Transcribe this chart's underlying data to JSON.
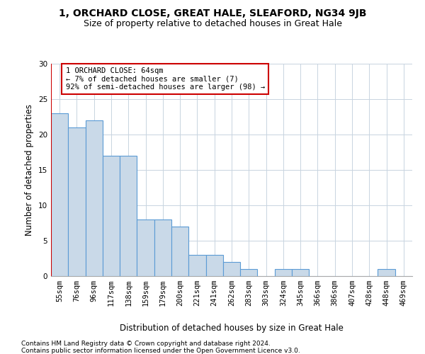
{
  "title1": "1, ORCHARD CLOSE, GREAT HALE, SLEAFORD, NG34 9JB",
  "title2": "Size of property relative to detached houses in Great Hale",
  "xlabel": "Distribution of detached houses by size in Great Hale",
  "ylabel": "Number of detached properties",
  "categories": [
    "55sqm",
    "76sqm",
    "96sqm",
    "117sqm",
    "138sqm",
    "159sqm",
    "179sqm",
    "200sqm",
    "221sqm",
    "241sqm",
    "262sqm",
    "283sqm",
    "303sqm",
    "324sqm",
    "345sqm",
    "366sqm",
    "386sqm",
    "407sqm",
    "428sqm",
    "448sqm",
    "469sqm"
  ],
  "values": [
    23,
    21,
    22,
    17,
    17,
    8,
    8,
    7,
    3,
    3,
    2,
    1,
    0,
    1,
    1,
    0,
    0,
    0,
    0,
    1,
    0
  ],
  "bar_color": "#c9d9e8",
  "bar_edge_color": "#5b9bd5",
  "highlight_color": "#cc0000",
  "annotation_text": "1 ORCHARD CLOSE: 64sqm\n← 7% of detached houses are smaller (7)\n92% of semi-detached houses are larger (98) →",
  "ylim": [
    0,
    30
  ],
  "yticks": [
    0,
    5,
    10,
    15,
    20,
    25,
    30
  ],
  "footnote1": "Contains HM Land Registry data © Crown copyright and database right 2024.",
  "footnote2": "Contains public sector information licensed under the Open Government Licence v3.0.",
  "bg_color": "#ffffff",
  "grid_color": "#c8d4e0",
  "title1_fontsize": 10,
  "title2_fontsize": 9,
  "axis_label_fontsize": 8.5,
  "tick_fontsize": 7.5,
  "annotation_fontsize": 7.5,
  "footnote_fontsize": 6.5
}
